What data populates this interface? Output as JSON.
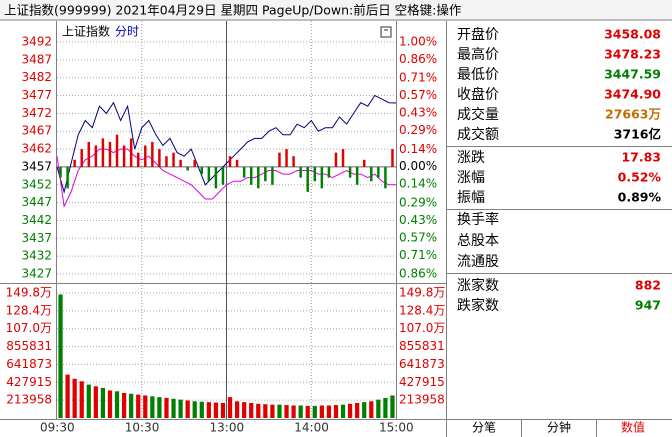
{
  "title_bar": "上证指数(999999)  2021年04月29日  星期四  PageUp/Down:前后日  空格键:操作",
  "chart_data": [
    {
      "type": "line",
      "header": "上证指数",
      "tab": "分时",
      "x": [
        0,
        5,
        10,
        15,
        20,
        25,
        30,
        35,
        40,
        45,
        50,
        55,
        60,
        65,
        70,
        75,
        80,
        85,
        90,
        95,
        100,
        105,
        110,
        115,
        120,
        125,
        130,
        135,
        140,
        145,
        150,
        155,
        160,
        165,
        170,
        175,
        180,
        185,
        190,
        195,
        200,
        205,
        210,
        215,
        220,
        225,
        230,
        235,
        240
      ],
      "xlim": [
        0,
        240
      ],
      "xticks": [
        {
          "value": 0,
          "label": "09:30"
        },
        {
          "value": 60,
          "label": "10:30"
        },
        {
          "value": 120,
          "label": "13:00"
        },
        {
          "value": 180,
          "label": "14:00"
        },
        {
          "value": 240,
          "label": "15:00"
        }
      ],
      "ylim": [
        3427,
        3492
      ],
      "yticks": [
        3492,
        3487,
        3482,
        3477,
        3472,
        3467,
        3462,
        3457,
        3452,
        3447,
        3442,
        3437,
        3432,
        3427
      ],
      "y2lim": [
        -0.86,
        1.0
      ],
      "y2ticks": [
        {
          "value": 1.0,
          "label": "1.00%"
        },
        {
          "value": 0.86,
          "label": "0.86%"
        },
        {
          "value": 0.71,
          "label": "0.71%"
        },
        {
          "value": 0.57,
          "label": "0.57%"
        },
        {
          "value": 0.43,
          "label": "0.43%"
        },
        {
          "value": 0.29,
          "label": "0.29%"
        },
        {
          "value": 0.14,
          "label": "0.14%"
        },
        {
          "value": 0,
          "label": "0.00%"
        },
        {
          "value": -0.14,
          "label": "0.14%"
        },
        {
          "value": -0.29,
          "label": "0.29%"
        },
        {
          "value": -0.43,
          "label": "0.43%"
        },
        {
          "value": -0.57,
          "label": "0.57%"
        },
        {
          "value": -0.71,
          "label": "0.71%"
        },
        {
          "value": -0.86,
          "label": "0.86%"
        }
      ],
      "grid": true,
      "series": [
        {
          "color": "#000080",
          "values": [
            3457,
            3450,
            3458,
            3466,
            3470,
            3468,
            3474,
            3472,
            3475,
            3470,
            3474,
            3462,
            3468,
            3470,
            3466,
            3463,
            3465,
            3461,
            3460,
            3462,
            3457,
            3452,
            3454,
            3456,
            3458,
            3460,
            3462,
            3464,
            3465,
            3465,
            3467,
            3468,
            3466,
            3466,
            3469,
            3468,
            3470,
            3467,
            3468,
            3468,
            3471,
            3469,
            3472,
            3475,
            3474,
            3477,
            3476,
            3475,
            3474.9
          ]
        },
        {
          "color": "#e000e0",
          "values": [
            3460,
            3446,
            3450,
            3456,
            3459,
            3460,
            3462,
            3462,
            3461,
            3462,
            3462,
            3460,
            3459,
            3460,
            3458,
            3456,
            3455,
            3454,
            3453,
            3452,
            3450,
            3448,
            3448,
            3450,
            3452,
            3453,
            3453,
            3454,
            3454,
            3455,
            3456,
            3456,
            3455,
            3455,
            3456,
            3456,
            3456,
            3455,
            3455,
            3454,
            3455,
            3456,
            3455,
            3455,
            3454,
            3455,
            3453,
            3452,
            3452
          ]
        }
      ]
    },
    {
      "type": "bar",
      "ylim": [
        -30,
        35
      ],
      "x": [
        0,
        5,
        10,
        15,
        20,
        25,
        30,
        35,
        40,
        45,
        50,
        55,
        60,
        65,
        70,
        75,
        80,
        85,
        90,
        95,
        100,
        105,
        110,
        115,
        120,
        125,
        130,
        135,
        140,
        145,
        150,
        155,
        160,
        165,
        170,
        175,
        180,
        185,
        190,
        195,
        200,
        205,
        210,
        215,
        220,
        225,
        230,
        235
      ],
      "up_color": "#e00000",
      "down_color": "#008000",
      "values": [
        -3,
        -6,
        2,
        5,
        7,
        6,
        8,
        7,
        9,
        6,
        8,
        4,
        6,
        7,
        5,
        3,
        4,
        2,
        -1,
        2,
        -2,
        -4,
        -6,
        -5,
        3,
        2,
        -3,
        -5,
        -6,
        -4,
        -5,
        4,
        5,
        3,
        -3,
        -7,
        -4,
        -6,
        -3,
        4,
        5,
        -3,
        -5,
        2,
        -4,
        -3,
        -6,
        5
      ]
    },
    {
      "type": "volume",
      "ylim": [
        0,
        1497706
      ],
      "yticks": [
        {
          "value": 1497706,
          "label": "149.8万"
        },
        {
          "value": 1283748,
          "label": "128.4万"
        },
        {
          "value": 1069790,
          "label": "107.0万"
        },
        855831,
        641873,
        427915,
        213958
      ],
      "x": [
        0,
        5,
        10,
        15,
        20,
        25,
        30,
        35,
        40,
        45,
        50,
        55,
        60,
        65,
        70,
        75,
        80,
        85,
        90,
        95,
        100,
        105,
        110,
        115,
        120,
        125,
        130,
        135,
        140,
        145,
        150,
        155,
        160,
        165,
        170,
        175,
        180,
        185,
        190,
        195,
        200,
        205,
        210,
        215,
        220,
        225,
        230,
        235
      ],
      "up_color": "#e00000",
      "down_color": "#008000",
      "values": [
        1480000,
        520000,
        470000,
        440000,
        400000,
        380000,
        360000,
        330000,
        320000,
        300000,
        290000,
        280000,
        270000,
        260000,
        250000,
        240000,
        230000,
        220000,
        210000,
        200000,
        195000,
        190000,
        185000,
        180000,
        250000,
        200000,
        190000,
        180000,
        170000,
        165000,
        160000,
        160000,
        155000,
        150000,
        150000,
        145000,
        145000,
        150000,
        150000,
        155000,
        160000,
        170000,
        180000,
        190000,
        200000,
        220000,
        240000,
        270000
      ]
    }
  ],
  "info": {
    "rows": [
      {
        "label": "开盘价",
        "value": "3458.08",
        "color": "#e00000"
      },
      {
        "label": "最高价",
        "value": "3478.23",
        "color": "#e00000"
      },
      {
        "label": "最低价",
        "value": "3447.59",
        "color": "#008000"
      },
      {
        "label": "收盘价",
        "value": "3474.90",
        "color": "#e00000"
      },
      {
        "label": "成交量",
        "value": "27663万",
        "color": "#c07000"
      },
      {
        "label": "成交额",
        "value": "3716亿",
        "color": "#000000"
      },
      {
        "label": "涨跌",
        "value": "17.83",
        "color": "#e00000"
      },
      {
        "label": "涨幅",
        "value": "0.52%",
        "color": "#e00000"
      },
      {
        "label": "振幅",
        "value": "0.89%",
        "color": "#000000"
      },
      {
        "label": "换手率"
      },
      {
        "label": "总股本"
      },
      {
        "label": "流通股"
      },
      {
        "label": "涨家数",
        "value": "882",
        "color": "#e00000"
      },
      {
        "label": "跌家数",
        "value": "947",
        "color": "#008000"
      }
    ],
    "tabs": [
      "分笔",
      "分钟",
      "数值"
    ]
  }
}
